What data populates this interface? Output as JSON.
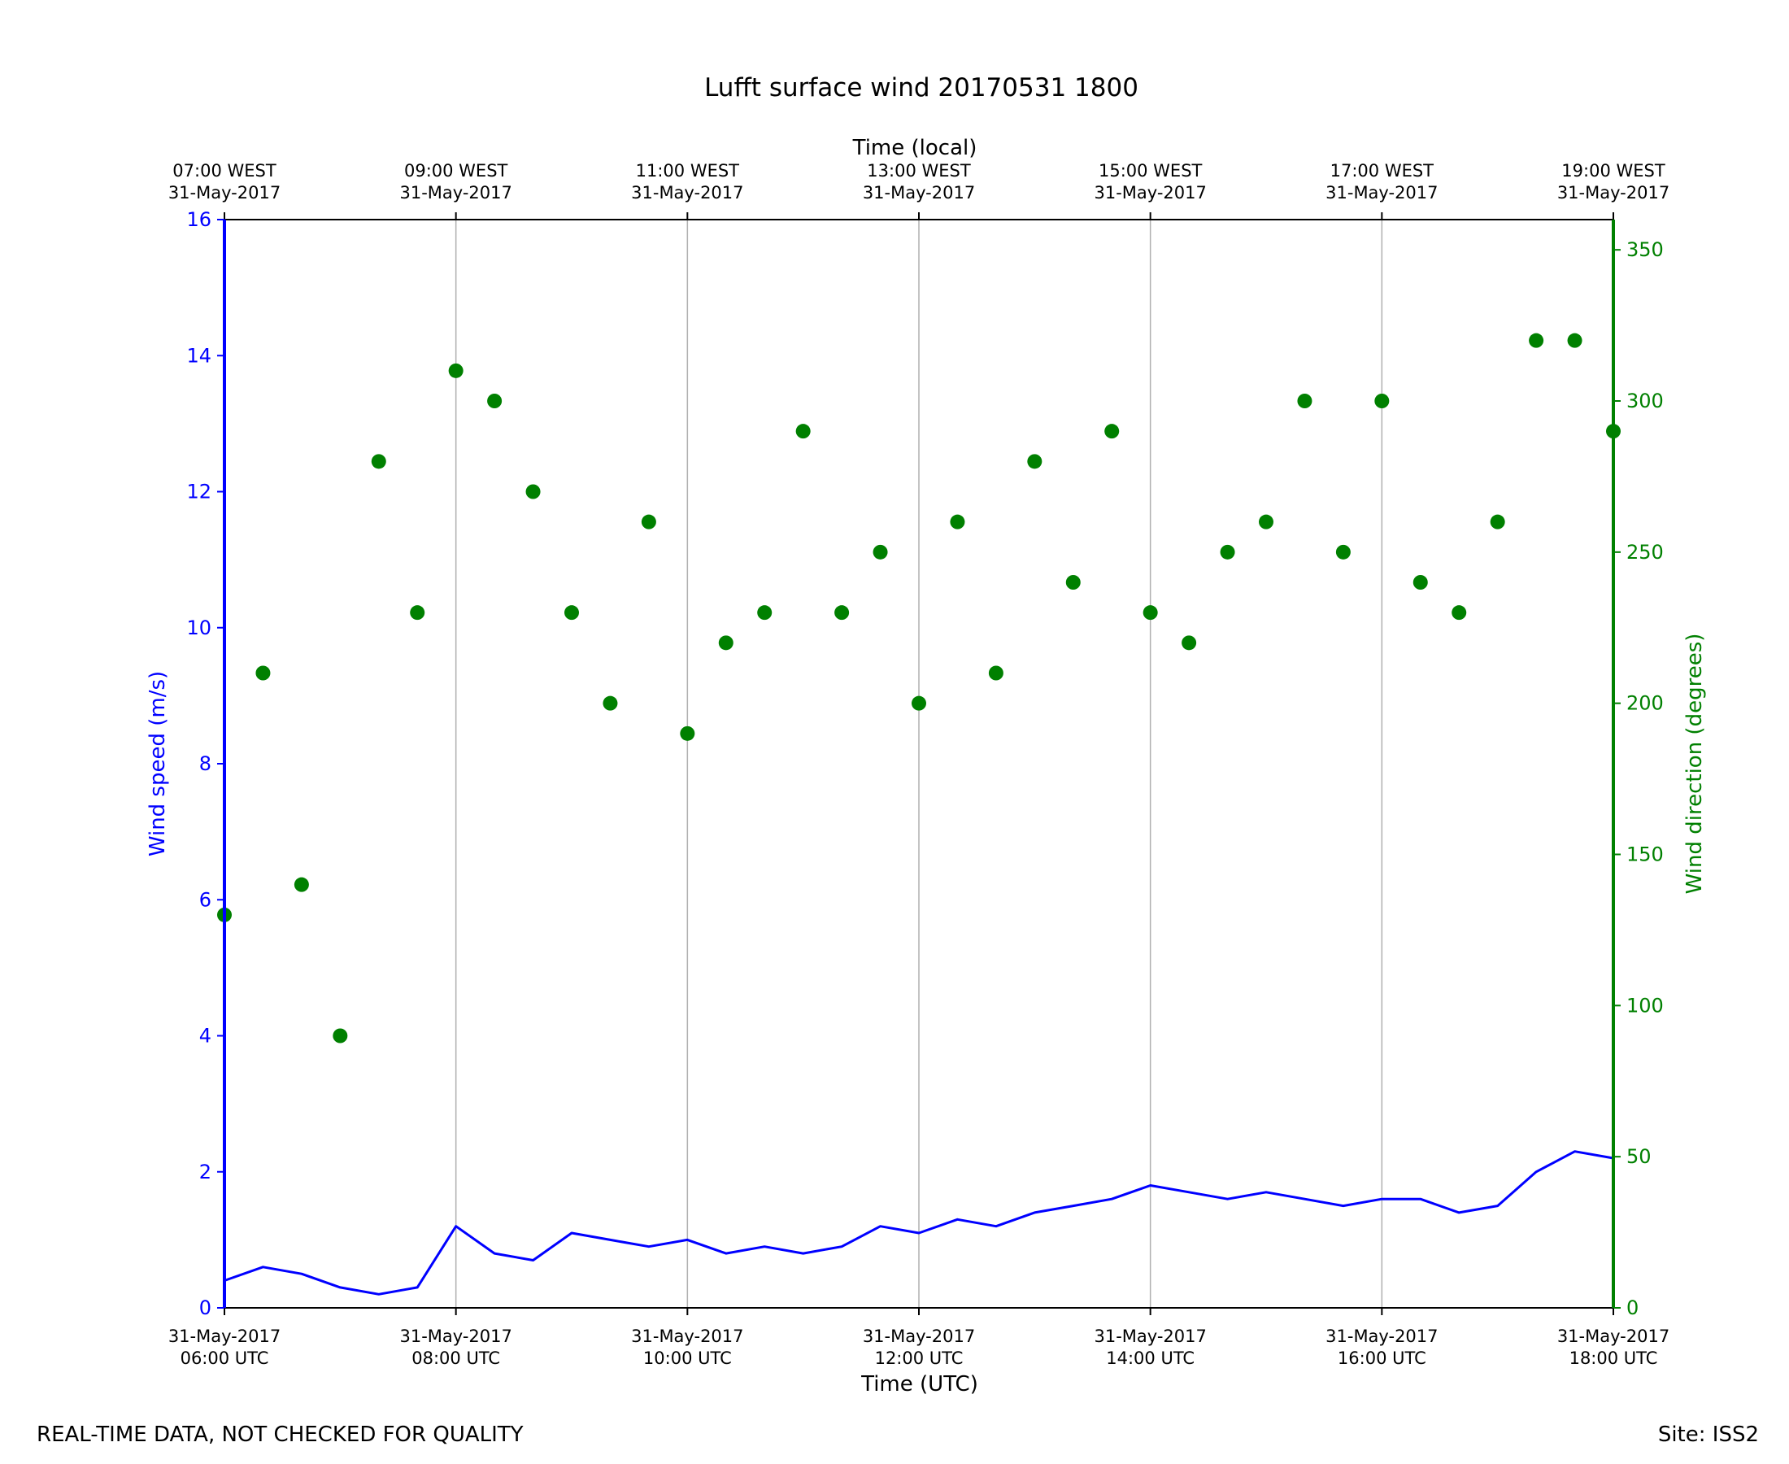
{
  "chart_data": {
    "type": "line",
    "title": "Lufft surface wind 20170531 1800",
    "footer_left": "REAL-TIME DATA, NOT CHECKED FOR QUALITY",
    "footer_right": "Site: ISS2",
    "xlabel_bottom": "Time (UTC)",
    "xlabel_top": "Time (local)",
    "ylabel_left": "Wind speed (m/s)",
    "ylabel_right": "Wind direction (degrees)",
    "x_range_utc": [
      "2017-05-31 06:00",
      "2017-05-31 18:00"
    ],
    "y_left_range": [
      0,
      16
    ],
    "y_right_range": [
      0,
      360
    ],
    "grid": "vertical lines at 2-hour ticks",
    "colors": {
      "speed": "#0000ff",
      "direction": "#008000",
      "grid": "#b0b0b0",
      "axis": "#000000"
    },
    "ticks_bottom": [
      {
        "date": "31-May-2017",
        "time": "06:00 UTC"
      },
      {
        "date": "31-May-2017",
        "time": "08:00 UTC"
      },
      {
        "date": "31-May-2017",
        "time": "10:00 UTC"
      },
      {
        "date": "31-May-2017",
        "time": "12:00 UTC"
      },
      {
        "date": "31-May-2017",
        "time": "14:00 UTC"
      },
      {
        "date": "31-May-2017",
        "time": "16:00 UTC"
      },
      {
        "date": "31-May-2017",
        "time": "18:00 UTC"
      }
    ],
    "ticks_top": [
      {
        "time": "07:00 WEST",
        "date": "31-May-2017"
      },
      {
        "time": "09:00 WEST",
        "date": "31-May-2017"
      },
      {
        "time": "11:00 WEST",
        "date": "31-May-2017"
      },
      {
        "time": "13:00 WEST",
        "date": "31-May-2017"
      },
      {
        "time": "15:00 WEST",
        "date": "31-May-2017"
      },
      {
        "time": "17:00 WEST",
        "date": "31-May-2017"
      },
      {
        "time": "19:00 WEST",
        "date": "31-May-2017"
      }
    ],
    "ticks_left": [
      "0",
      "2",
      "4",
      "6",
      "8",
      "10",
      "12",
      "14",
      "16"
    ],
    "ticks_right": [
      "0",
      "50",
      "100",
      "150",
      "200",
      "250",
      "300",
      "350"
    ],
    "series": [
      {
        "name": "Wind speed (m/s)",
        "axis": "left",
        "x": [
          "2017-05-31 06:00",
          "2017-05-31 06:20",
          "2017-05-31 06:40",
          "2017-05-31 07:00",
          "2017-05-31 07:20",
          "2017-05-31 07:40",
          "2017-05-31 08:00",
          "2017-05-31 08:20",
          "2017-05-31 08:40",
          "2017-05-31 09:00",
          "2017-05-31 09:20",
          "2017-05-31 09:40",
          "2017-05-31 10:00",
          "2017-05-31 10:20",
          "2017-05-31 10:40",
          "2017-05-31 11:00",
          "2017-05-31 11:20",
          "2017-05-31 11:40",
          "2017-05-31 12:00",
          "2017-05-31 12:20",
          "2017-05-31 12:40",
          "2017-05-31 13:00",
          "2017-05-31 13:20",
          "2017-05-31 13:40",
          "2017-05-31 14:00",
          "2017-05-31 14:20",
          "2017-05-31 14:40",
          "2017-05-31 15:00",
          "2017-05-31 15:20",
          "2017-05-31 15:40",
          "2017-05-31 16:00",
          "2017-05-31 16:20",
          "2017-05-31 16:40",
          "2017-05-31 17:00",
          "2017-05-31 17:20",
          "2017-05-31 17:40",
          "2017-05-31 18:00"
        ],
        "values": [
          0.4,
          0.6,
          0.5,
          0.3,
          0.2,
          0.3,
          1.2,
          0.8,
          0.7,
          1.1,
          1.0,
          0.9,
          1.0,
          0.8,
          0.9,
          0.8,
          0.9,
          1.2,
          1.1,
          1.3,
          1.2,
          1.4,
          1.5,
          1.6,
          1.8,
          1.7,
          1.6,
          1.7,
          1.6,
          1.5,
          1.6,
          1.6,
          1.4,
          1.5,
          2.0,
          2.3,
          2.2
        ]
      },
      {
        "name": "Wind direction (degrees)",
        "axis": "right",
        "x": [
          "2017-05-31 06:00",
          "2017-05-31 06:20",
          "2017-05-31 06:40",
          "2017-05-31 07:00",
          "2017-05-31 07:20",
          "2017-05-31 07:40",
          "2017-05-31 08:00",
          "2017-05-31 08:20",
          "2017-05-31 08:40",
          "2017-05-31 09:00",
          "2017-05-31 09:20",
          "2017-05-31 09:40",
          "2017-05-31 10:00",
          "2017-05-31 10:20",
          "2017-05-31 10:40",
          "2017-05-31 11:00",
          "2017-05-31 11:20",
          "2017-05-31 11:40",
          "2017-05-31 12:00",
          "2017-05-31 12:20",
          "2017-05-31 12:40",
          "2017-05-31 13:00",
          "2017-05-31 13:20",
          "2017-05-31 13:40",
          "2017-05-31 14:00",
          "2017-05-31 14:20",
          "2017-05-31 14:40",
          "2017-05-31 15:00",
          "2017-05-31 15:20",
          "2017-05-31 15:40",
          "2017-05-31 16:00",
          "2017-05-31 16:20",
          "2017-05-31 16:40",
          "2017-05-31 17:00",
          "2017-05-31 17:20",
          "2017-05-31 17:40",
          "2017-05-31 18:00"
        ],
        "values": [
          130,
          210,
          140,
          90,
          280,
          230,
          310,
          300,
          270,
          230,
          200,
          260,
          190,
          220,
          230,
          290,
          230,
          250,
          200,
          260,
          210,
          280,
          240,
          290,
          230,
          220,
          250,
          260,
          300,
          250,
          300,
          240,
          230,
          260,
          320,
          320,
          290
        ]
      }
    ]
  }
}
